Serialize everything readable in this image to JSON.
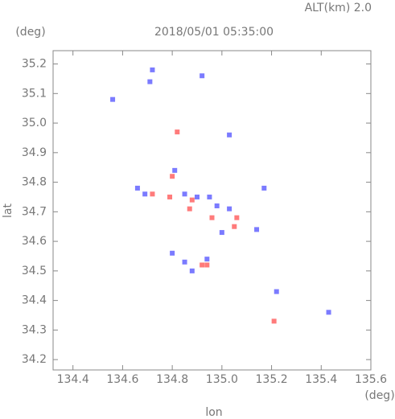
{
  "chart_data": {
    "type": "scatter",
    "title": "2018/05/01 05:35:00",
    "subtitle": "ALT(km) 2.0",
    "x_label": "lon",
    "x_unit": "(deg)",
    "y_label": "lat",
    "y_unit": "(deg)",
    "xlim": [
      134.32,
      135.6
    ],
    "ylim": [
      34.165,
      35.245
    ],
    "xticks": [
      134.4,
      134.6,
      134.8,
      {
        "value": 135,
        "label": "135.0"
      },
      135.2,
      135.4,
      135.6
    ],
    "yticks": [
      34.2,
      34.3,
      34.4,
      34.5,
      34.6,
      34.7,
      34.8,
      34.9,
      {
        "value": 35,
        "label": "35.0"
      },
      35.1,
      35.2
    ],
    "series": [
      {
        "color": "#5a5aff",
        "x": [
          134.71,
          134.72,
          134.56,
          134.92,
          135.03,
          134.81,
          134.66,
          134.69,
          134.85,
          134.9,
          134.95,
          134.98,
          135.03,
          135.0,
          134.8,
          134.88,
          134.94,
          135.17,
          135.14,
          135.43,
          135.22,
          134.85
        ],
        "y": [
          35.14,
          35.18,
          35.08,
          35.16,
          34.96,
          34.84,
          34.78,
          34.76,
          34.76,
          34.75,
          34.75,
          34.72,
          34.71,
          34.63,
          34.56,
          34.5,
          34.54,
          34.78,
          34.64,
          34.36,
          34.43,
          34.53
        ]
      },
      {
        "color": "#ff5a5a",
        "x": [
          134.82,
          134.8,
          134.72,
          134.79,
          134.88,
          134.96,
          135.05,
          135.06,
          134.94,
          134.92,
          135.21,
          134.87
        ],
        "y": [
          34.97,
          34.82,
          34.76,
          34.75,
          34.74,
          34.68,
          34.65,
          34.68,
          34.52,
          34.52,
          34.33,
          34.71
        ]
      }
    ]
  }
}
